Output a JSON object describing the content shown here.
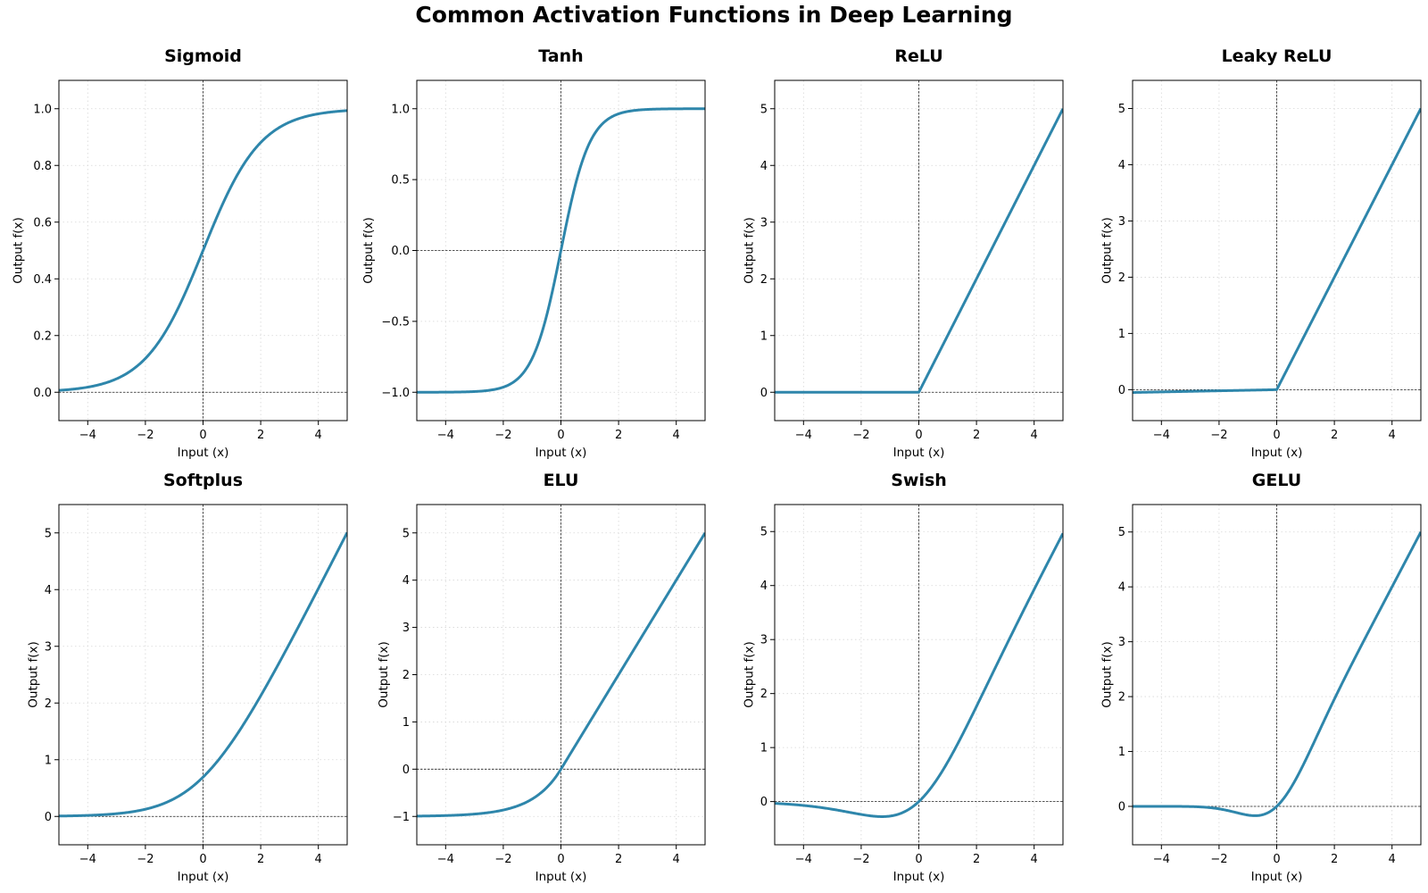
{
  "figure": {
    "title": "Common Activation Functions in Deep Learning",
    "line_color": "#2e86ab",
    "grid": true,
    "grid_style": "dotted",
    "reference_lines": "dashed at x=0 and y=0"
  },
  "chart_data": [
    {
      "type": "line",
      "title": "Sigmoid",
      "function": "sigmoid",
      "xlabel": "Input (x)",
      "ylabel": "Output f(x)",
      "xlim": [
        -5,
        5
      ],
      "ylim": [
        -0.1,
        1.1
      ],
      "xticks": [
        -4,
        -2,
        0,
        2,
        4
      ],
      "xtick_labels": [
        "−4",
        "−2",
        "0",
        "2",
        "4"
      ],
      "yticks": [
        0,
        0.2,
        0.4,
        0.6,
        0.8,
        1.0
      ],
      "ytick_labels": [
        "0.0",
        "0.2",
        "0.4",
        "0.6",
        "0.8",
        "1.0"
      ],
      "x": [
        -5,
        -4,
        -3,
        -2,
        -1,
        0,
        1,
        2,
        3,
        4,
        5
      ],
      "y": [
        0.007,
        0.018,
        0.047,
        0.119,
        0.269,
        0.5,
        0.731,
        0.881,
        0.953,
        0.982,
        0.993
      ]
    },
    {
      "type": "line",
      "title": "Tanh",
      "function": "tanh",
      "xlabel": "Input (x)",
      "ylabel": "Output f(x)",
      "xlim": [
        -5,
        5
      ],
      "ylim": [
        -1.2,
        1.2
      ],
      "xticks": [
        -4,
        -2,
        0,
        2,
        4
      ],
      "xtick_labels": [
        "−4",
        "−2",
        "0",
        "2",
        "4"
      ],
      "yticks": [
        -1.0,
        -0.5,
        0,
        0.5,
        1.0
      ],
      "ytick_labels": [
        "−1.0",
        "−0.5",
        "0.0",
        "0.5",
        "1.0"
      ],
      "x": [
        -5,
        -4,
        -3,
        -2,
        -1,
        0,
        1,
        2,
        3,
        4,
        5
      ],
      "y": [
        -1.0,
        -0.999,
        -0.995,
        -0.964,
        -0.762,
        0,
        0.762,
        0.964,
        0.995,
        0.999,
        1.0
      ]
    },
    {
      "type": "line",
      "title": "ReLU",
      "function": "relu",
      "xlabel": "Input (x)",
      "ylabel": "Output f(x)",
      "xlim": [
        -5,
        5
      ],
      "ylim": [
        -0.5,
        5.5
      ],
      "xticks": [
        -4,
        -2,
        0,
        2,
        4
      ],
      "xtick_labels": [
        "−4",
        "−2",
        "0",
        "2",
        "4"
      ],
      "yticks": [
        0,
        1,
        2,
        3,
        4,
        5
      ],
      "ytick_labels": [
        "0",
        "1",
        "2",
        "3",
        "4",
        "5"
      ],
      "x": [
        -5,
        -4,
        -3,
        -2,
        -1,
        0,
        1,
        2,
        3,
        4,
        5
      ],
      "y": [
        0,
        0,
        0,
        0,
        0,
        0,
        1,
        2,
        3,
        4,
        5
      ]
    },
    {
      "type": "line",
      "title": "Leaky ReLU",
      "function": "leaky_relu",
      "xlabel": "Input (x)",
      "ylabel": "Output f(x)",
      "xlim": [
        -5,
        5
      ],
      "ylim": [
        -0.55,
        5.5
      ],
      "xticks": [
        -4,
        -2,
        0,
        2,
        4
      ],
      "xtick_labels": [
        "−4",
        "−2",
        "0",
        "2",
        "4"
      ],
      "yticks": [
        0,
        1,
        2,
        3,
        4,
        5
      ],
      "ytick_labels": [
        "0",
        "1",
        "2",
        "3",
        "4",
        "5"
      ],
      "x": [
        -5,
        -4,
        -3,
        -2,
        -1,
        0,
        1,
        2,
        3,
        4,
        5
      ],
      "y": [
        -0.05,
        -0.04,
        -0.03,
        -0.02,
        -0.01,
        0,
        1,
        2,
        3,
        4,
        5
      ]
    },
    {
      "type": "line",
      "title": "Softplus",
      "function": "softplus",
      "xlabel": "Input (x)",
      "ylabel": "Output f(x)",
      "xlim": [
        -5,
        5
      ],
      "ylim": [
        -0.5,
        5.5
      ],
      "xticks": [
        -4,
        -2,
        0,
        2,
        4
      ],
      "xtick_labels": [
        "−4",
        "−2",
        "0",
        "2",
        "4"
      ],
      "yticks": [
        0,
        1,
        2,
        3,
        4,
        5
      ],
      "ytick_labels": [
        "0",
        "1",
        "2",
        "3",
        "4",
        "5"
      ],
      "x": [
        -5,
        -4,
        -3,
        -2,
        -1,
        0,
        1,
        2,
        3,
        4,
        5
      ],
      "y": [
        0.007,
        0.018,
        0.049,
        0.127,
        0.313,
        0.693,
        1.313,
        2.127,
        3.049,
        4.018,
        5.007
      ]
    },
    {
      "type": "line",
      "title": "ELU",
      "function": "elu",
      "xlabel": "Input (x)",
      "ylabel": "Output f(x)",
      "xlim": [
        -5,
        5
      ],
      "ylim": [
        -1.6,
        5.6
      ],
      "xticks": [
        -4,
        -2,
        0,
        2,
        4
      ],
      "xtick_labels": [
        "−4",
        "−2",
        "0",
        "2",
        "4"
      ],
      "yticks": [
        -1,
        0,
        1,
        2,
        3,
        4,
        5
      ],
      "ytick_labels": [
        "−1",
        "0",
        "1",
        "2",
        "3",
        "4",
        "5"
      ],
      "x": [
        -5,
        -4,
        -3,
        -2,
        -1,
        0,
        1,
        2,
        3,
        4,
        5
      ],
      "y": [
        -0.993,
        -0.982,
        -0.95,
        -0.865,
        -0.632,
        0,
        1,
        2,
        3,
        4,
        5
      ]
    },
    {
      "type": "line",
      "title": "Swish",
      "function": "swish",
      "xlabel": "Input (x)",
      "ylabel": "Output f(x)",
      "xlim": [
        -5,
        5
      ],
      "ylim": [
        -0.8,
        5.5
      ],
      "xticks": [
        -4,
        -2,
        0,
        2,
        4
      ],
      "xtick_labels": [
        "−4",
        "−2",
        "0",
        "2",
        "4"
      ],
      "yticks": [
        0,
        1,
        2,
        3,
        4,
        5
      ],
      "ytick_labels": [
        "0",
        "1",
        "2",
        "3",
        "4",
        "5"
      ],
      "x": [
        -5,
        -4,
        -3,
        -2,
        -1,
        0,
        1,
        2,
        3,
        4,
        5
      ],
      "y": [
        -0.033,
        -0.072,
        -0.142,
        -0.238,
        -0.269,
        0,
        0.731,
        1.762,
        2.858,
        3.928,
        4.967
      ]
    },
    {
      "type": "line",
      "title": "GELU",
      "function": "gelu",
      "xlabel": "Input (x)",
      "ylabel": "Output f(x)",
      "xlim": [
        -5,
        5
      ],
      "ylim": [
        -0.7,
        5.5
      ],
      "xticks": [
        -4,
        -2,
        0,
        2,
        4
      ],
      "xtick_labels": [
        "−4",
        "−2",
        "0",
        "2",
        "4"
      ],
      "yticks": [
        0,
        1,
        2,
        3,
        4,
        5
      ],
      "ytick_labels": [
        "0",
        "1",
        "2",
        "3",
        "4",
        "5"
      ],
      "x": [
        -5,
        -4,
        -3,
        -2,
        -1,
        0,
        1,
        2,
        3,
        4,
        5
      ],
      "y": [
        0,
        0,
        -0.004,
        -0.045,
        -0.159,
        0,
        0.841,
        1.955,
        2.996,
        4.0,
        5.0
      ]
    }
  ]
}
